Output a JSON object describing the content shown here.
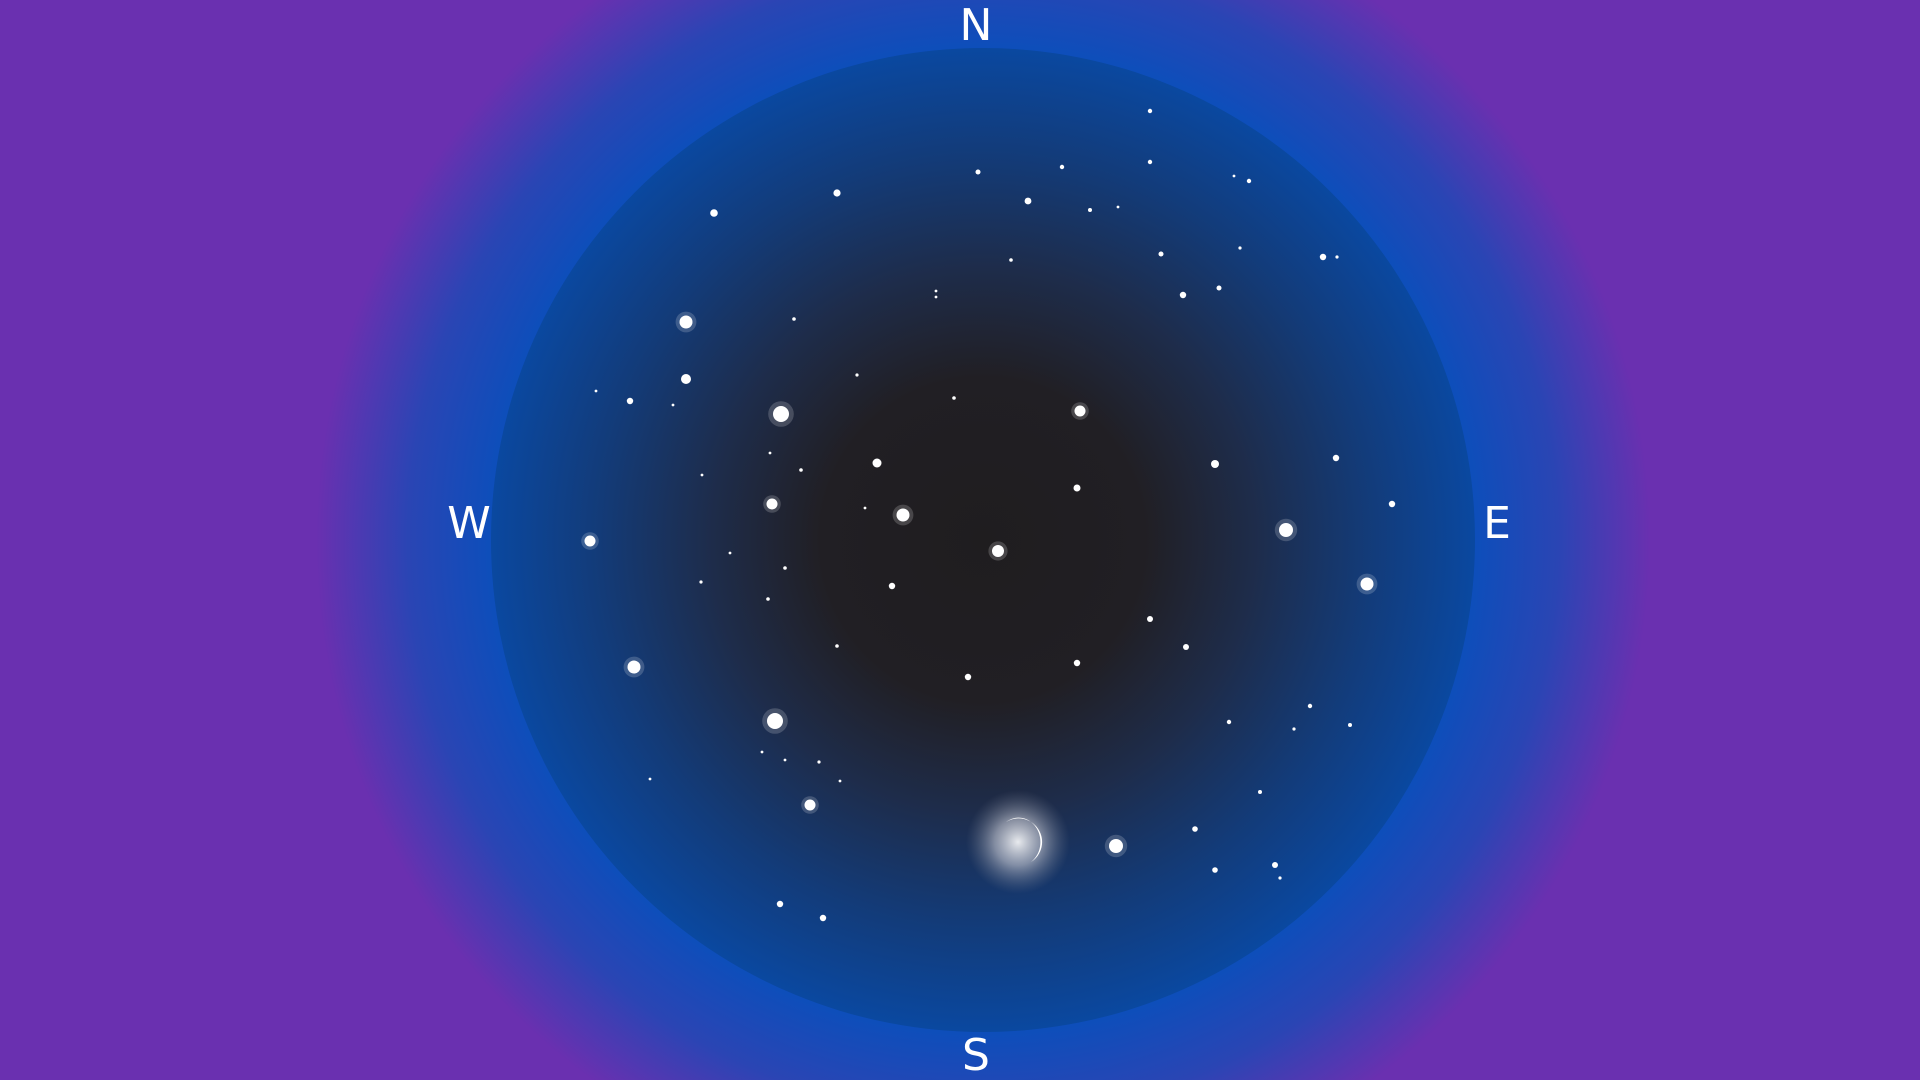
{
  "compass": {
    "north": "N",
    "south": "S",
    "west": "W",
    "east": "E"
  },
  "colors": {
    "sky_center": "#1f1d1f",
    "sky_edge": "#0a48a0",
    "star": "#ffffff"
  },
  "icons": {
    "moon": "crescent-moon-icon",
    "star": "star-icon"
  }
}
